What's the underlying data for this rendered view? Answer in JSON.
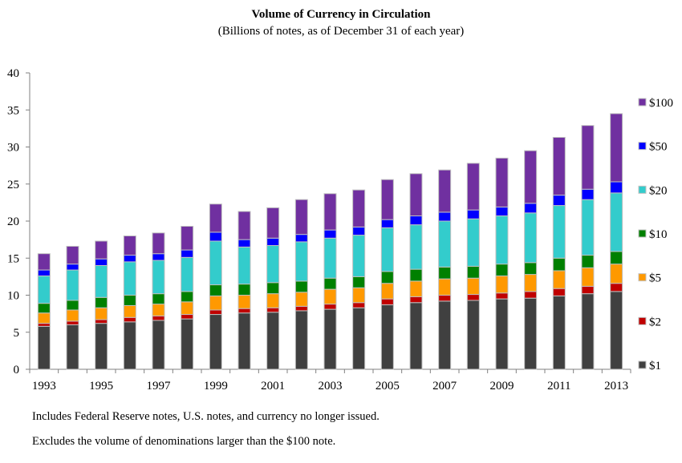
{
  "chart_data": {
    "type": "bar",
    "stacked": true,
    "title": "Volume of Currency in Circulation",
    "subtitle": "(Billions of notes, as of December 31 of each year)",
    "xlabel": "",
    "ylabel": "",
    "ylim": [
      0,
      40
    ],
    "yticks": [
      0,
      5,
      10,
      15,
      20,
      25,
      30,
      35,
      40
    ],
    "grid": false,
    "legend": "right",
    "categories": [
      "1993",
      "1994",
      "1995",
      "1996",
      "1997",
      "1998",
      "1999",
      "2000",
      "2001",
      "2002",
      "2003",
      "2004",
      "2005",
      "2006",
      "2007",
      "2008",
      "2009",
      "2010",
      "2011",
      "2012",
      "2013"
    ],
    "x_tick_labels": [
      "1993",
      "1995",
      "1997",
      "1999",
      "2001",
      "2003",
      "2005",
      "2007",
      "2009",
      "2011",
      "2013"
    ],
    "series": [
      {
        "name": "$1",
        "color": "#404040",
        "values": [
          5.8,
          6.0,
          6.2,
          6.4,
          6.6,
          6.8,
          7.4,
          7.6,
          7.7,
          7.9,
          8.1,
          8.3,
          8.7,
          9.0,
          9.2,
          9.3,
          9.5,
          9.6,
          9.9,
          10.2,
          10.5
        ]
      },
      {
        "name": "$2",
        "color": "#c00000",
        "values": [
          0.4,
          0.5,
          0.5,
          0.6,
          0.6,
          0.6,
          0.6,
          0.6,
          0.6,
          0.6,
          0.7,
          0.7,
          0.8,
          0.8,
          0.8,
          0.8,
          0.8,
          0.9,
          1.0,
          1.0,
          1.1
        ]
      },
      {
        "name": "$5",
        "color": "#ff9900",
        "values": [
          1.4,
          1.5,
          1.6,
          1.6,
          1.6,
          1.7,
          1.9,
          1.8,
          1.9,
          1.9,
          2.0,
          2.0,
          2.1,
          2.1,
          2.2,
          2.2,
          2.3,
          2.3,
          2.4,
          2.5,
          2.6
        ]
      },
      {
        "name": "$10",
        "color": "#008000",
        "values": [
          1.3,
          1.3,
          1.4,
          1.4,
          1.4,
          1.4,
          1.5,
          1.5,
          1.5,
          1.5,
          1.5,
          1.5,
          1.6,
          1.6,
          1.6,
          1.6,
          1.6,
          1.6,
          1.7,
          1.7,
          1.7
        ]
      },
      {
        "name": "$20",
        "color": "#33cccc",
        "values": [
          3.7,
          4.1,
          4.3,
          4.5,
          4.5,
          4.6,
          5.9,
          5.0,
          5.0,
          5.3,
          5.4,
          5.6,
          5.9,
          6.0,
          6.2,
          6.4,
          6.5,
          6.7,
          7.1,
          7.5,
          7.9
        ]
      },
      {
        "name": "$50",
        "color": "#0000ff",
        "values": [
          0.8,
          0.8,
          0.9,
          0.9,
          0.9,
          1.0,
          1.2,
          1.0,
          1.0,
          1.0,
          1.1,
          1.1,
          1.1,
          1.2,
          1.2,
          1.2,
          1.2,
          1.3,
          1.4,
          1.4,
          1.5
        ]
      },
      {
        "name": "$100",
        "color": "#7030a0",
        "values": [
          2.2,
          2.4,
          2.4,
          2.6,
          2.8,
          3.2,
          3.8,
          3.8,
          4.1,
          4.7,
          4.9,
          5.0,
          5.4,
          5.7,
          5.7,
          6.3,
          6.6,
          7.1,
          7.8,
          8.6,
          9.2
        ]
      }
    ]
  },
  "notes": {
    "line1": "Includes Federal Reserve notes, U.S. notes, and currency no longer issued.",
    "line2": "Excludes the volume of denominations larger than the $100 note."
  }
}
